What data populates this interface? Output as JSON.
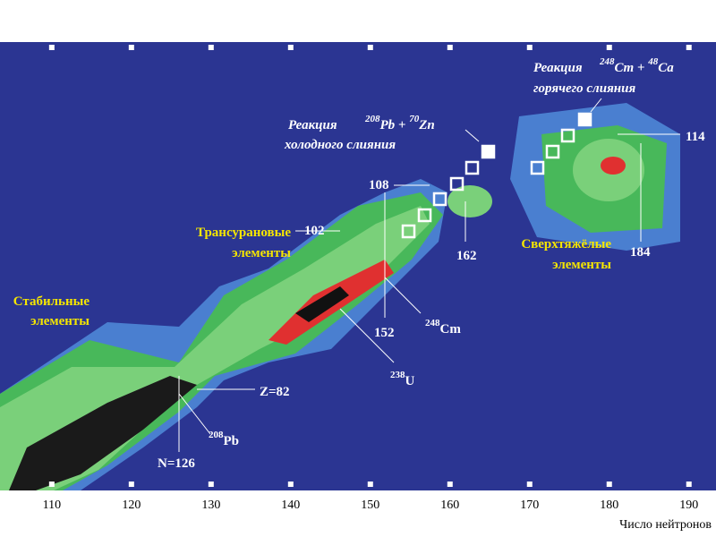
{
  "chart_data": {
    "type": "heatmap",
    "x_label": "Число нейтронов",
    "xlim": [
      103.5,
      193.4
    ],
    "xticks": [
      110,
      120,
      130,
      140,
      150,
      160,
      170,
      180,
      190
    ],
    "labels": {
      "cold": [
        "Реакция",
        "208",
        "Pb + ",
        "70",
        "Zn",
        "холодного слияния"
      ],
      "hot": [
        "Реакция",
        "248",
        "Cm + ",
        "48",
        "Ca",
        "горячего слияния"
      ],
      "n108": "108",
      "n102": "102",
      "n162": "162",
      "n184": "184",
      "n114": "114",
      "n152": "152",
      "cm248": [
        "248",
        "Cm"
      ],
      "u238": [
        "238",
        "U"
      ],
      "z82": "Z=82",
      "pb208": [
        "208",
        "Pb"
      ],
      "n126": "N=126",
      "transuranium": [
        "Трансурановые",
        "элементы"
      ],
      "stable": [
        "Стабильные",
        "элементы"
      ],
      "superheavy": [
        "Сверхтяжёлые",
        "элементы"
      ]
    }
  }
}
